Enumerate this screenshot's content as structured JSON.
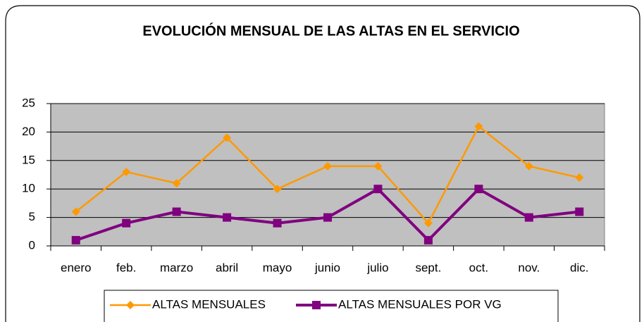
{
  "chart_data": {
    "type": "line",
    "title": "EVOLUCIÓN MENSUAL DE LAS ALTAS EN EL SERVICIO",
    "categories": [
      "enero",
      "feb.",
      "marzo",
      "abril",
      "mayo",
      "junio",
      "julio",
      "sept.",
      "oct.",
      "nov.",
      "dic."
    ],
    "series": [
      {
        "name": "ALTAS MENSUALES",
        "color": "#ff9900",
        "values": [
          6,
          13,
          11,
          19,
          10,
          14,
          14,
          4,
          21,
          14,
          12
        ]
      },
      {
        "name": "ALTAS MENSUALES POR VG",
        "color": "#800080",
        "values": [
          1,
          4,
          6,
          5,
          4,
          5,
          10,
          1,
          10,
          5,
          6
        ]
      }
    ],
    "ylim": [
      0,
      25
    ],
    "yticks": [
      0,
      5,
      10,
      15,
      20,
      25
    ],
    "grid": true,
    "legend": "bottom"
  }
}
